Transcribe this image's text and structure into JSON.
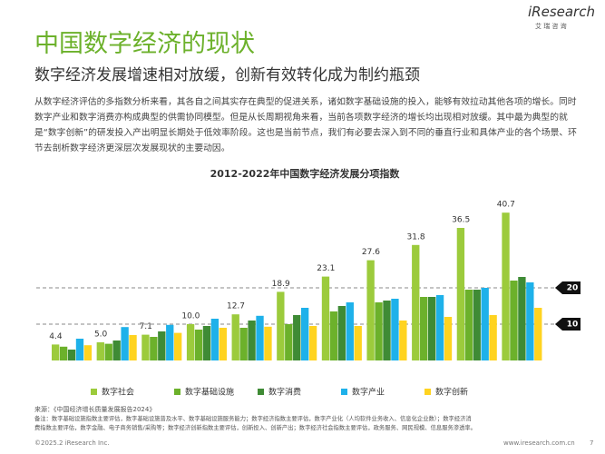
{
  "header": {
    "title": "中国数字经济的现状",
    "subtitle": "数字经济发展增速相对放缓，创新有效转化成为制约瓶颈",
    "logo": "iResearch",
    "logo_sub": "艾 瑞 咨 询"
  },
  "paragraph": "从数字经济评估的多指数分析来看，其各自之间其实存在典型的促进关系，诸如数字基础设施的投入，能够有效拉动其他各项的增长。同时数字产业和数字消费亦构成典型的供需协同模型。但是从长周期视角来看，当前各项数字经济的增长均出现相对放缓。其中最为典型的就是“数字创新”的研发投入产出明显长期处于低效率阶段。这也是当前节点，我们有必要去深入到不同的垂直行业和具体产业的各个场景、环节去剖析数字经济更深层次发展现状的主要动因。",
  "chart_data": {
    "type": "bar",
    "title": "2012-2022年中国数字经济发展分项指数",
    "categories": [
      null,
      null,
      null,
      null,
      null,
      null,
      null,
      null,
      null,
      null,
      null
    ],
    "series": [
      {
        "name": "数字社会",
        "color": "#9ccb3c",
        "values": [
          4.4,
          5.0,
          7.1,
          10.0,
          12.7,
          18.9,
          23.1,
          27.6,
          31.8,
          36.5,
          40.7
        ],
        "value_labels": [
          "4.4",
          "5.0",
          "7.1",
          "10.0",
          "12.7",
          "18.9",
          "23.1",
          "27.6",
          "31.8",
          "36.5",
          "40.7"
        ]
      },
      {
        "name": "数字基础设施",
        "color": "#6cb12b",
        "values": [
          3.8,
          4.6,
          6.5,
          8.5,
          9.0,
          10.0,
          13.5,
          16.0,
          17.5,
          19.5,
          22.0
        ]
      },
      {
        "name": "数字消费",
        "color": "#3f8b35",
        "values": [
          3.0,
          5.5,
          8.0,
          9.5,
          11.0,
          12.5,
          15.0,
          16.5,
          17.5,
          19.5,
          23.0
        ]
      },
      {
        "name": "数字产业",
        "color": "#1eb1ea",
        "values": [
          6.0,
          9.2,
          9.8,
          11.5,
          12.3,
          14.5,
          16.0,
          17.0,
          18.0,
          20.0,
          21.5
        ]
      },
      {
        "name": "数字创新",
        "color": "#ffd320",
        "values": [
          4.2,
          7.0,
          7.6,
          9.0,
          9.3,
          9.5,
          9.5,
          11.0,
          12.0,
          12.5,
          14.5
        ]
      }
    ],
    "ylim": [
      0,
      45
    ],
    "yticks": [
      10,
      20
    ],
    "grid": true
  },
  "source": "来源：《中国经济增长质量发展报告2024》",
  "notes": [
    "备注：数字基础设施指数主要评估，数字基础设施普及水平、数字基础设施服务能力；数字经济指数主要评估，数字产业化（人均软件业务收入、信息化企业数）；数字经济消",
    "费指数主要评估，数字金融、电子商务销售/采购等；数字经济创新指数主要评估，创新投入、创新产出；数字经济社会指数主要评估，政务服务、网民规模、信息服务渗透率。"
  ],
  "footer": {
    "copyright": "©2025.2 iResearch Inc.",
    "url": "www.iresearch.com.cn",
    "page": "7"
  }
}
